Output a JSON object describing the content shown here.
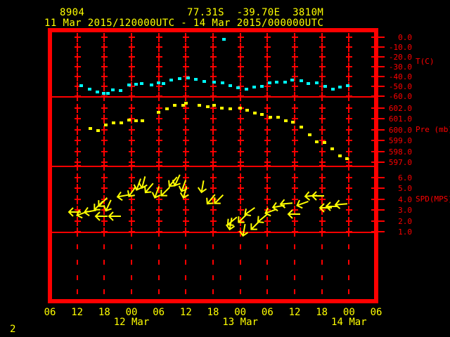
{
  "header": {
    "station_id": "8904",
    "location": "77.31S  -39.70E  3810M",
    "period": "11 Mar 2015/120000UTC - 14 Mar 2015/000000UTC"
  },
  "footer": {
    "corner_label": "2"
  },
  "colors": {
    "background": "#000000",
    "frame_and_axis": "#ff0000",
    "time_labels": "#ffff00",
    "title_text": "#ffff00",
    "temperature_points": "#00ffff",
    "pressure_points": "#ffff00",
    "wind_arrows": "#ffff00"
  },
  "chart_data": {
    "type": "scatter",
    "x_axis": {
      "range_hours": [
        0,
        72
      ],
      "hour_ticks": [
        {
          "t": 0,
          "label": "06"
        },
        {
          "t": 6,
          "label": "12"
        },
        {
          "t": 12,
          "label": "18"
        },
        {
          "t": 18,
          "label": "00"
        },
        {
          "t": 24,
          "label": "06"
        },
        {
          "t": 30,
          "label": "12"
        },
        {
          "t": 36,
          "label": "18"
        },
        {
          "t": 42,
          "label": "00"
        },
        {
          "t": 48,
          "label": "06"
        },
        {
          "t": 54,
          "label": "12"
        },
        {
          "t": 60,
          "label": "18"
        },
        {
          "t": 66,
          "label": "00"
        },
        {
          "t": 72,
          "label": "06"
        }
      ],
      "date_ticks": [
        {
          "t": 18,
          "label": "12 Mar"
        },
        {
          "t": 42,
          "label": "13 Mar"
        },
        {
          "t": 66,
          "label": "14 Mar"
        }
      ]
    },
    "panels": [
      {
        "id": "temperature",
        "ylabel": "T(C)",
        "point_color": "#00ffff",
        "yticks": [
          {
            "v": 0,
            "label": "0.0"
          },
          {
            "v": -10,
            "label": "-10.0"
          },
          {
            "v": -20,
            "label": "-20.0"
          },
          {
            "v": -30,
            "label": "-30.0"
          },
          {
            "v": -40,
            "label": "-40.0"
          },
          {
            "v": -50,
            "label": "-50.0"
          },
          {
            "v": -60,
            "label": "-60.0"
          }
        ],
        "points": [
          [
            6.8,
            -49.3
          ],
          [
            8.7,
            -52.5
          ],
          [
            10.4,
            -55.4
          ],
          [
            11.8,
            -57.1
          ],
          [
            12.7,
            -57.1
          ],
          [
            13.8,
            -53.9
          ],
          [
            15.5,
            -54.3
          ],
          [
            17.4,
            -48.6
          ],
          [
            18.9,
            -47.9
          ],
          [
            20.2,
            -47.1
          ],
          [
            22.3,
            -48.6
          ],
          [
            23.9,
            -46.6
          ],
          [
            25.0,
            -46.9
          ],
          [
            26.7,
            -43.6
          ],
          [
            28.6,
            -42.1
          ],
          [
            30.4,
            -41.4
          ],
          [
            32.1,
            -42.9
          ],
          [
            34.0,
            -45.0
          ],
          [
            36.2,
            -45.5
          ],
          [
            38.0,
            -46.4
          ],
          [
            38.3,
            -2.1
          ],
          [
            39.7,
            -49.3
          ],
          [
            41.4,
            -51.6
          ],
          [
            43.3,
            -53.1
          ],
          [
            45.0,
            -50.7
          ],
          [
            46.7,
            -50.2
          ],
          [
            48.4,
            -46.4
          ],
          [
            50.0,
            -45.5
          ],
          [
            51.8,
            -45.7
          ],
          [
            53.4,
            -43.6
          ],
          [
            55.4,
            -44.5
          ],
          [
            57.0,
            -46.9
          ],
          [
            58.8,
            -46.4
          ],
          [
            60.7,
            -50.0
          ],
          [
            62.4,
            -52.6
          ],
          [
            63.9,
            -50.7
          ],
          [
            65.6,
            -49.3
          ]
        ]
      },
      {
        "id": "pressure",
        "ylabel": "Pre (mb)",
        "point_color": "#ffff00",
        "yticks": [
          {
            "v": 602,
            "label": "602.0"
          },
          {
            "v": 601,
            "label": "601.0"
          },
          {
            "v": 600,
            "label": "600.0"
          },
          {
            "v": 599,
            "label": "599.0"
          },
          {
            "v": 598,
            "label": "598.0"
          },
          {
            "v": 597,
            "label": "597.0"
          }
        ],
        "points": [
          [
            8.8,
            600.1
          ],
          [
            10.5,
            599.9
          ],
          [
            12.3,
            600.4
          ],
          [
            13.9,
            600.6
          ],
          [
            15.6,
            600.6
          ],
          [
            17.4,
            600.9
          ],
          [
            18.9,
            600.8
          ],
          [
            20.3,
            600.8
          ],
          [
            23.9,
            601.6
          ],
          [
            25.7,
            601.9
          ],
          [
            27.5,
            602.2
          ],
          [
            29.3,
            602.2
          ],
          [
            30.0,
            602.4
          ],
          [
            32.9,
            602.2
          ],
          [
            34.7,
            602.1
          ],
          [
            36.2,
            602.2
          ],
          [
            37.9,
            602.0
          ],
          [
            39.7,
            601.9
          ],
          [
            41.9,
            602.0
          ],
          [
            43.4,
            601.8
          ],
          [
            45.1,
            601.5
          ],
          [
            46.7,
            601.4
          ],
          [
            48.5,
            601.1
          ],
          [
            50.3,
            601.1
          ],
          [
            52.0,
            600.8
          ],
          [
            53.6,
            600.7
          ],
          [
            55.4,
            600.2
          ],
          [
            57.3,
            599.5
          ],
          [
            58.8,
            598.9
          ],
          [
            60.5,
            598.8
          ],
          [
            62.2,
            598.2
          ],
          [
            63.9,
            597.6
          ],
          [
            65.5,
            597.3
          ]
        ]
      },
      {
        "id": "wind_speed",
        "ylabel": "SPD(MPS)",
        "arrow_color": "#ffff00",
        "yticks": [
          {
            "v": 6,
            "label": "6.0"
          },
          {
            "v": 5,
            "label": "5.0"
          },
          {
            "v": 4,
            "label": "4.0"
          },
          {
            "v": 3,
            "label": "3.0"
          },
          {
            "v": 2,
            "label": "2.0"
          },
          {
            "v": 1,
            "label": "1.0"
          }
        ],
        "arrows": [
          [
            5.5,
            2.8,
            180
          ],
          [
            7.1,
            2.7,
            160
          ],
          [
            8.8,
            2.9,
            170
          ],
          [
            10.7,
            3.4,
            135
          ],
          [
            11.6,
            3.7,
            135
          ],
          [
            12.9,
            3.4,
            115
          ],
          [
            11.3,
            2.4,
            180
          ],
          [
            14.3,
            2.4,
            180
          ],
          [
            16.1,
            4.3,
            170
          ],
          [
            18.2,
            4.7,
            125
          ],
          [
            19.6,
            5.3,
            110
          ],
          [
            20.6,
            5.5,
            105
          ],
          [
            21.9,
            5.0,
            130
          ],
          [
            23.6,
            4.6,
            110
          ],
          [
            25.4,
            4.7,
            135
          ],
          [
            27.2,
            5.6,
            130
          ],
          [
            28.1,
            5.7,
            115
          ],
          [
            29.5,
            5.2,
            110
          ],
          [
            29.8,
            4.6,
            105
          ],
          [
            33.7,
            5.1,
            100
          ],
          [
            35.5,
            4.0,
            130
          ],
          [
            37.2,
            4.0,
            135
          ],
          [
            40.2,
            2.0,
            140
          ],
          [
            39.9,
            1.7,
            100
          ],
          [
            42.5,
            2.2,
            135
          ],
          [
            44.1,
            2.9,
            145
          ],
          [
            42.8,
            1.1,
            100
          ],
          [
            45.3,
            1.6,
            135
          ],
          [
            46.9,
            2.2,
            140
          ],
          [
            48.7,
            2.9,
            160
          ],
          [
            50.4,
            3.3,
            170
          ],
          [
            52.1,
            3.6,
            175
          ],
          [
            53.8,
            2.6,
            180
          ],
          [
            55.7,
            3.6,
            160
          ],
          [
            57.6,
            4.3,
            175
          ],
          [
            59.1,
            4.3,
            180
          ],
          [
            60.8,
            3.2,
            180
          ],
          [
            62.2,
            3.3,
            180
          ],
          [
            64.2,
            3.5,
            175
          ]
        ]
      }
    ]
  }
}
